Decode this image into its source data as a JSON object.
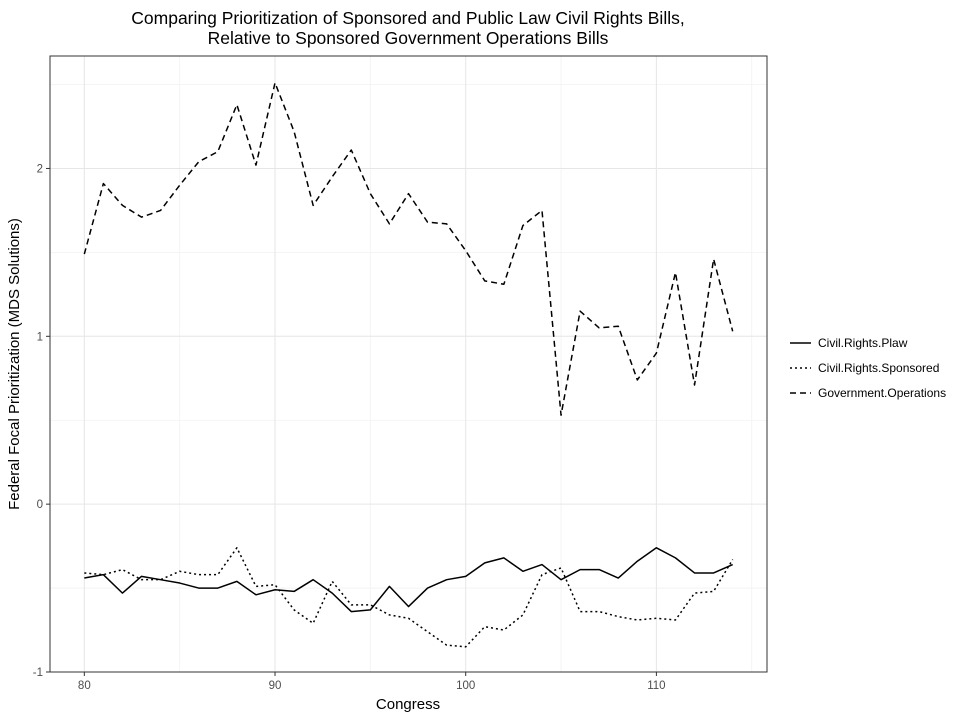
{
  "chart_data": {
    "type": "line",
    "title_line1": "Comparing Prioritization of Sponsored and Public Law Civil Rights Bills,",
    "title_line2": "Relative to Sponsored Government Operations Bills",
    "xlabel": "Congress",
    "ylabel": "Federal Focal Prioritization (MDS Solutions)",
    "xlim": [
      78.2,
      115.8
    ],
    "ylim": [
      -1.0,
      2.67
    ],
    "x_ticks": [
      80,
      90,
      100,
      110
    ],
    "y_ticks": [
      -1,
      0,
      1,
      2
    ],
    "x_tick_labels": [
      "80",
      "90",
      "100",
      "110"
    ],
    "y_tick_labels": [
      "-1",
      "0",
      "1",
      "2"
    ],
    "grid": true,
    "legend_position": "right",
    "x": [
      80,
      81,
      82,
      83,
      84,
      85,
      86,
      87,
      88,
      89,
      90,
      91,
      92,
      93,
      94,
      95,
      96,
      97,
      98,
      99,
      100,
      101,
      102,
      103,
      104,
      105,
      106,
      107,
      108,
      109,
      110,
      111,
      112,
      113,
      114
    ],
    "series": [
      {
        "name": "Civil.Rights.Plaw",
        "dash": "solid",
        "values": [
          -0.44,
          -0.42,
          -0.53,
          -0.43,
          -0.45,
          -0.47,
          -0.5,
          -0.5,
          -0.46,
          -0.54,
          -0.51,
          -0.52,
          -0.45,
          -0.53,
          -0.64,
          -0.63,
          -0.49,
          -0.61,
          -0.5,
          -0.45,
          -0.43,
          -0.35,
          -0.32,
          -0.4,
          -0.36,
          -0.45,
          -0.39,
          -0.39,
          -0.44,
          -0.34,
          -0.26,
          -0.32,
          -0.41,
          -0.41,
          -0.36
        ]
      },
      {
        "name": "Civil.Rights.Sponsored",
        "dash": "dotted",
        "values": [
          -0.41,
          -0.42,
          -0.39,
          -0.45,
          -0.45,
          -0.4,
          -0.42,
          -0.42,
          -0.26,
          -0.49,
          -0.48,
          -0.63,
          -0.71,
          -0.46,
          -0.6,
          -0.6,
          -0.66,
          -0.68,
          -0.76,
          -0.84,
          -0.85,
          -0.73,
          -0.75,
          -0.66,
          -0.42,
          -0.38,
          -0.64,
          -0.64,
          -0.67,
          -0.69,
          -0.68,
          -0.69,
          -0.53,
          -0.52,
          -0.33
        ]
      },
      {
        "name": "Government.Operations",
        "dash": "dashed",
        "values": [
          1.49,
          1.91,
          1.78,
          1.71,
          1.75,
          1.9,
          2.04,
          2.1,
          2.38,
          2.02,
          2.51,
          2.22,
          1.78,
          1.95,
          2.11,
          1.85,
          1.67,
          1.85,
          1.68,
          1.67,
          1.51,
          1.33,
          1.31,
          1.66,
          1.75,
          0.53,
          1.15,
          1.05,
          1.06,
          0.74,
          0.9,
          1.38,
          0.71,
          1.46,
          1.03
        ]
      }
    ]
  }
}
